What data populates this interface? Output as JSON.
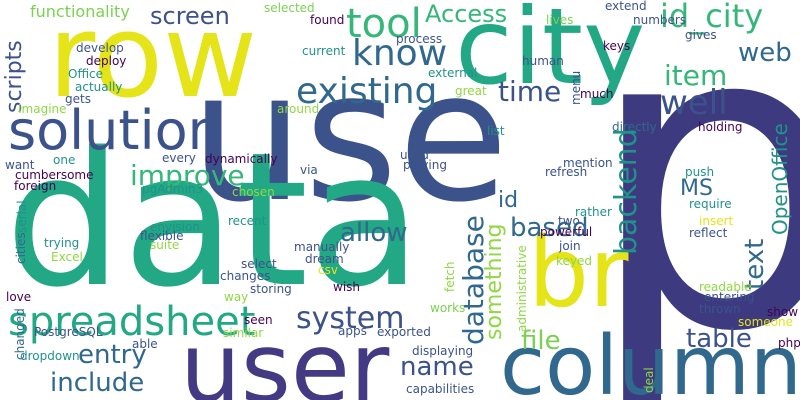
{
  "palette": {
    "dark_purple": "#440154",
    "indigo": "#3b528b",
    "slate_blue": "#414487",
    "blue": "#31688e",
    "teal": "#21918c",
    "sea_green": "#22a884",
    "green": "#35b779",
    "lime": "#7ad151",
    "light_lime": "#90d743",
    "yellow": "#e4e419",
    "background": "#ffffff"
  },
  "words": [
    {
      "text": "use",
      "color": "#3b528b"
    },
    {
      "text": "data",
      "color": "#22a884"
    },
    {
      "text": "p",
      "color": "#3d3a7f"
    },
    {
      "text": "row",
      "color": "#e4e419"
    },
    {
      "text": "city",
      "color": "#22a884"
    },
    {
      "text": "user",
      "color": "#433a83"
    },
    {
      "text": "column",
      "color": "#31688e"
    },
    {
      "text": "br",
      "color": "#e4e419"
    },
    {
      "text": "solution",
      "color": "#3b528b"
    },
    {
      "text": "spreadsheet",
      "color": "#22a884"
    },
    {
      "text": "tool",
      "color": "#35b779"
    },
    {
      "text": "know",
      "color": "#31688e"
    },
    {
      "text": "existing",
      "color": "#31688e"
    },
    {
      "text": "well",
      "color": "#3b528b"
    },
    {
      "text": "item",
      "color": "#35b779"
    },
    {
      "text": "time",
      "color": "#3b528b"
    },
    {
      "text": "id_city",
      "color": "#35b779"
    },
    {
      "text": "web",
      "color": "#31688e"
    },
    {
      "text": "Access",
      "color": "#35b779"
    },
    {
      "text": "screen",
      "color": "#3b528b"
    },
    {
      "text": "improve",
      "color": "#35b779"
    },
    {
      "text": "allow",
      "color": "#31688e"
    },
    {
      "text": "based",
      "color": "#31688e"
    },
    {
      "text": "system",
      "color": "#3b528b"
    },
    {
      "text": "entry",
      "color": "#31688e"
    },
    {
      "text": "include",
      "color": "#31688e"
    },
    {
      "text": "name",
      "color": "#3b528b"
    },
    {
      "text": "file",
      "color": "#7ad151"
    },
    {
      "text": "table",
      "color": "#3b528b"
    },
    {
      "text": "MS",
      "color": "#31688e"
    },
    {
      "text": "id",
      "color": "#31688e"
    },
    {
      "text": "text",
      "color": "#31688e"
    },
    {
      "text": "backend",
      "color": "#21918c"
    },
    {
      "text": "database",
      "color": "#31688e"
    },
    {
      "text": "something",
      "color": "#90d743"
    },
    {
      "text": "OpenOffice",
      "color": "#21918c"
    },
    {
      "text": "scripts",
      "color": "#3b528b"
    },
    {
      "text": "functionality",
      "color": "#7ad151"
    },
    {
      "text": "develop",
      "color": "#3b528b"
    },
    {
      "text": "deploy",
      "color": "#440154"
    },
    {
      "text": "Office",
      "color": "#21918c"
    },
    {
      "text": "actually",
      "color": "#21918c"
    },
    {
      "text": "gets",
      "color": "#3b528b"
    },
    {
      "text": "Imagine",
      "color": "#90d743"
    },
    {
      "text": "want",
      "color": "#3b528b"
    },
    {
      "text": "one",
      "color": "#21918c"
    },
    {
      "text": "cumbersome",
      "color": "#440154"
    },
    {
      "text": "foreign",
      "color": "#440154"
    },
    {
      "text": "trying",
      "color": "#21918c"
    },
    {
      "text": "Excel",
      "color": "#90d743"
    },
    {
      "text": "love",
      "color": "#440154"
    },
    {
      "text": "cities",
      "color": "#31688e"
    },
    {
      "text": "serial",
      "color": "#21918c"
    },
    {
      "text": "changed",
      "color": "#31688e"
    },
    {
      "text": "PostgreSQL",
      "color": "#3b528b"
    },
    {
      "text": "dropdown",
      "color": "#21918c"
    },
    {
      "text": "able",
      "color": "#3b528b"
    },
    {
      "text": "pgAdmin3",
      "color": "#21918c"
    },
    {
      "text": "every",
      "color": "#3b528b"
    },
    {
      "text": "dynamically",
      "color": "#440154"
    },
    {
      "text": "chosen",
      "color": "#90d743"
    },
    {
      "text": "via",
      "color": "#3b528b"
    },
    {
      "text": "recent",
      "color": "#21918c"
    },
    {
      "text": "flexible",
      "color": "#3b528b"
    },
    {
      "text": "envision",
      "color": "#21918c"
    },
    {
      "text": "suite",
      "color": "#90d743"
    },
    {
      "text": "select",
      "color": "#3b528b"
    },
    {
      "text": "changes",
      "color": "#3b528b"
    },
    {
      "text": "storing",
      "color": "#3b528b"
    },
    {
      "text": "way",
      "color": "#90d743"
    },
    {
      "text": "seen",
      "color": "#440154"
    },
    {
      "text": "similar",
      "color": "#90d743"
    },
    {
      "text": "manually",
      "color": "#3b528b"
    },
    {
      "text": "dream",
      "color": "#3b528b"
    },
    {
      "text": "wish",
      "color": "#440154"
    },
    {
      "text": "csv",
      "color": "#e4e419"
    },
    {
      "text": "apps",
      "color": "#3b528b"
    },
    {
      "text": "exported",
      "color": "#3b528b"
    },
    {
      "text": "displaying",
      "color": "#3b528b"
    },
    {
      "text": "capabilities",
      "color": "#3b528b"
    },
    {
      "text": "works",
      "color": "#7ad151"
    },
    {
      "text": "fetch",
      "color": "#90d743"
    },
    {
      "text": "administrative",
      "color": "#90d743"
    },
    {
      "text": "deal",
      "color": "#90d743"
    },
    {
      "text": "selected",
      "color": "#7ad151"
    },
    {
      "text": "found",
      "color": "#440154"
    },
    {
      "text": "current",
      "color": "#21918c"
    },
    {
      "text": "around",
      "color": "#90d743"
    },
    {
      "text": "process",
      "color": "#3b528b"
    },
    {
      "text": "human",
      "color": "#3b528b"
    },
    {
      "text": "external",
      "color": "#21918c"
    },
    {
      "text": "great",
      "color": "#90d743"
    },
    {
      "text": "list",
      "color": "#21918c"
    },
    {
      "text": "lives",
      "color": "#7ad151"
    },
    {
      "text": "extend",
      "color": "#3b528b"
    },
    {
      "text": "numbers",
      "color": "#3b528b"
    },
    {
      "text": "keys",
      "color": "#440154"
    },
    {
      "text": "gives",
      "color": "#3b528b"
    },
    {
      "text": "menu",
      "color": "#3b528b"
    },
    {
      "text": "much",
      "color": "#440154"
    },
    {
      "text": "directly",
      "color": "#31688e"
    },
    {
      "text": "holding",
      "color": "#440154"
    },
    {
      "text": "mention",
      "color": "#3b528b"
    },
    {
      "text": "refresh",
      "color": "#3b528b"
    },
    {
      "text": "used",
      "color": "#3b528b"
    },
    {
      "text": "playing",
      "color": "#3b528b"
    },
    {
      "text": "push",
      "color": "#21918c"
    },
    {
      "text": "require",
      "color": "#21918c"
    },
    {
      "text": "insert",
      "color": "#e4e419"
    },
    {
      "text": "reflect",
      "color": "#3b528b"
    },
    {
      "text": "powerful",
      "color": "#440154"
    },
    {
      "text": "rather",
      "color": "#21918c"
    },
    {
      "text": "two",
      "color": "#3b528b"
    },
    {
      "text": "join",
      "color": "#3b528b"
    },
    {
      "text": "keyed",
      "color": "#90d743"
    },
    {
      "text": "readable",
      "color": "#90d743"
    },
    {
      "text": "entering",
      "color": "#3b528b"
    },
    {
      "text": "thrown",
      "color": "#3b528b"
    },
    {
      "text": "someone",
      "color": "#e4e419"
    },
    {
      "text": "show",
      "color": "#440154"
    },
    {
      "text": "php",
      "color": "#440154"
    }
  ]
}
